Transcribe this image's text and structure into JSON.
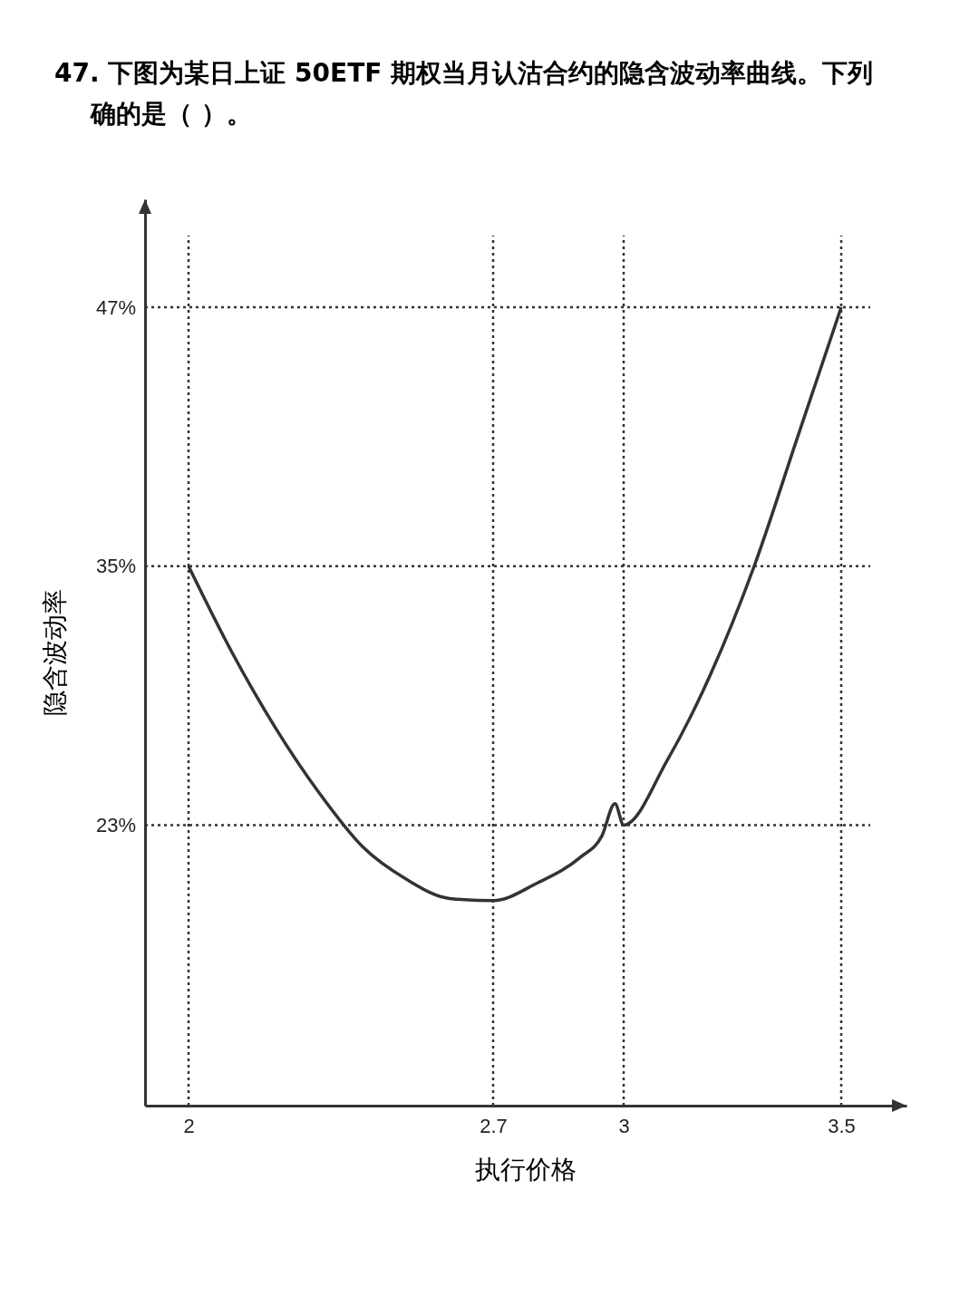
{
  "chart_data": {
    "type": "line",
    "title": "47. 下图为某日上证 50ETF 期权当月认沽合约的隐含波动率曲线。下列",
    "subtitle": "确的是（ ）。",
    "xlabel": "执行价格",
    "ylabel": "隐含波动率",
    "x": [
      2,
      2.1,
      2.2,
      2.3,
      2.4,
      2.5,
      2.6,
      2.7,
      2.8,
      2.9,
      2.95,
      2.98,
      3,
      3.1,
      3.2,
      3.3,
      3.4,
      3.5
    ],
    "series": [
      {
        "color": "#333333",
        "values": [
          35,
          31,
          27.5,
          24.5,
          22,
          20.5,
          19.6,
          19.5,
          20.3,
          21.5,
          22.5,
          24,
          23,
          26,
          30,
          35,
          41,
          47
        ]
      }
    ],
    "xlim": [
      1.9,
      3.65
    ],
    "ylim": [
      10,
      52
    ],
    "xticks": [
      2,
      2.7,
      3,
      3.5
    ],
    "yticks": [
      {
        "value": 23,
        "label": "23%"
      },
      {
        "value": 35,
        "label": "35%"
      },
      {
        "value": 47,
        "label": "47%"
      }
    ],
    "ref_lines": [
      {
        "axis": "x",
        "value": 2,
        "line_style": "dotted"
      },
      {
        "axis": "x",
        "value": 2.7,
        "line_style": "dotted"
      },
      {
        "axis": "x",
        "value": 3,
        "line_style": "dotted"
      },
      {
        "axis": "x",
        "value": 3.5,
        "line_style": "dotted"
      },
      {
        "axis": "y",
        "value": 23,
        "line_style": "dotted"
      },
      {
        "axis": "y",
        "value": 35,
        "line_style": "dotted"
      },
      {
        "axis": "y",
        "value": 47,
        "line_style": "dotted"
      }
    ],
    "grid": false,
    "marker": "none",
    "line_style": "solid"
  }
}
